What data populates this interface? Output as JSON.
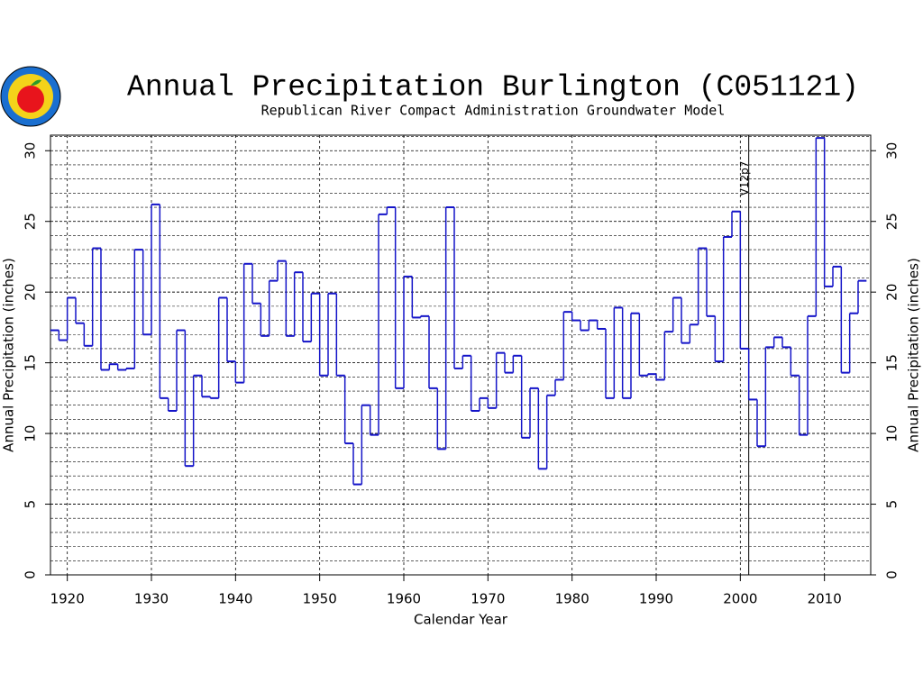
{
  "chart_data": {
    "type": "step",
    "title": "Annual Precipitation Burlington (C051121)",
    "subtitle": "Republican River Compact Administration Groundwater Model",
    "x_label": "Calendar Year",
    "y_label": "Annual Precipitation (inches)",
    "x": [
      1918,
      1919,
      1920,
      1921,
      1922,
      1923,
      1924,
      1925,
      1926,
      1927,
      1928,
      1929,
      1930,
      1931,
      1932,
      1933,
      1934,
      1935,
      1936,
      1937,
      1938,
      1939,
      1940,
      1941,
      1942,
      1943,
      1944,
      1945,
      1946,
      1947,
      1948,
      1949,
      1950,
      1951,
      1952,
      1953,
      1954,
      1955,
      1956,
      1957,
      1958,
      1959,
      1960,
      1961,
      1962,
      1963,
      1964,
      1965,
      1966,
      1967,
      1968,
      1969,
      1970,
      1971,
      1972,
      1973,
      1974,
      1975,
      1976,
      1977,
      1978,
      1979,
      1980,
      1981,
      1982,
      1983,
      1984,
      1985,
      1986,
      1987,
      1988,
      1989,
      1990,
      1991,
      1992,
      1993,
      1994,
      1995,
      1996,
      1997,
      1998,
      1999,
      2000,
      2001,
      2002,
      2003,
      2004,
      2005,
      2006,
      2007,
      2008,
      2009,
      2010,
      2011,
      2012,
      2013,
      2014
    ],
    "series": [
      {
        "name": "Annual Precipitation",
        "color": "#1414c8",
        "values": [
          17.3,
          16.6,
          19.6,
          17.8,
          16.2,
          23.1,
          14.5,
          14.9,
          14.5,
          14.6,
          23.0,
          17.0,
          26.2,
          12.5,
          11.6,
          17.3,
          7.7,
          14.1,
          12.6,
          12.5,
          19.6,
          15.1,
          13.6,
          22.0,
          19.2,
          16.9,
          20.8,
          22.2,
          16.9,
          21.4,
          16.5,
          19.9,
          14.1,
          19.9,
          14.1,
          9.3,
          6.4,
          12.0,
          9.9,
          25.5,
          26.0,
          13.2,
          21.1,
          18.2,
          18.3,
          13.2,
          8.9,
          26.0,
          14.6,
          15.5,
          11.6,
          12.5,
          11.8,
          15.7,
          14.3,
          15.5,
          9.7,
          13.2,
          7.5,
          12.7,
          13.8,
          18.6,
          18.0,
          17.3,
          18.0,
          17.4,
          12.5,
          18.9,
          12.5,
          18.5,
          14.1,
          14.2,
          13.8,
          17.2,
          19.6,
          16.4,
          17.7,
          23.1,
          18.3,
          15.1,
          23.9,
          25.7,
          16.0,
          12.4,
          9.1,
          16.1,
          16.8,
          16.1,
          14.1,
          9.9,
          18.3,
          30.9,
          20.4,
          21.8,
          14.3,
          18.5,
          20.8
        ]
      }
    ],
    "xlim": [
      1918,
      2015.5
    ],
    "ylim": [
      0,
      31.1
    ],
    "xticks": [
      1920,
      1930,
      1940,
      1950,
      1960,
      1970,
      1980,
      1990,
      2000,
      2010
    ],
    "yticks": [
      0,
      5,
      10,
      15,
      20,
      25,
      30
    ],
    "y_minor_step": 1,
    "grid": true,
    "annotations": [
      {
        "text": "V12p7",
        "x": 2001
      }
    ]
  }
}
